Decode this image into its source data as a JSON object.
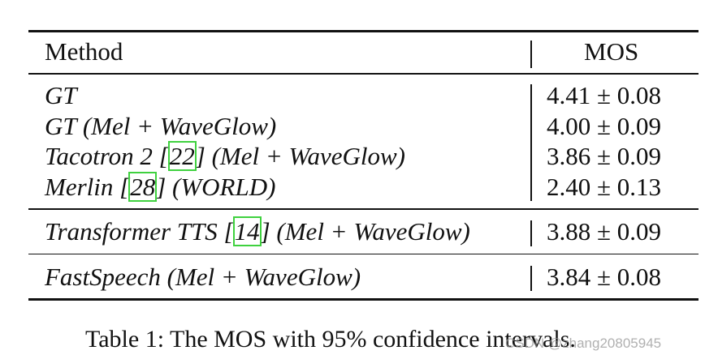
{
  "table": {
    "header": [
      "Method",
      "MOS"
    ],
    "groups": [
      [
        {
          "method": [
            "GT"
          ],
          "mos": "4.41 ± 0.08"
        },
        {
          "method": [
            "GT (Mel + WaveGlow)"
          ],
          "mos": "4.00 ± 0.09"
        },
        {
          "method": [
            "Tacotron 2 [",
            "22",
            "] (Mel + WaveGlow)"
          ],
          "mos": "3.86 ± 0.09"
        },
        {
          "method": [
            "Merlin [",
            "28",
            "] (WORLD)"
          ],
          "mos": "2.40 ± 0.13"
        }
      ],
      [
        {
          "method": [
            "Transformer TTS [",
            "14",
            "] (Mel + WaveGlow)"
          ],
          "mos": "3.88 ± 0.09"
        }
      ],
      [
        {
          "method": [
            "FastSpeech (Mel + WaveGlow)"
          ],
          "mos": "3.84 ± 0.08"
        }
      ]
    ],
    "caption": "Table 1: The MOS with 95% confidence intervals.",
    "watermark": "CSDN @zhang20805945"
  }
}
